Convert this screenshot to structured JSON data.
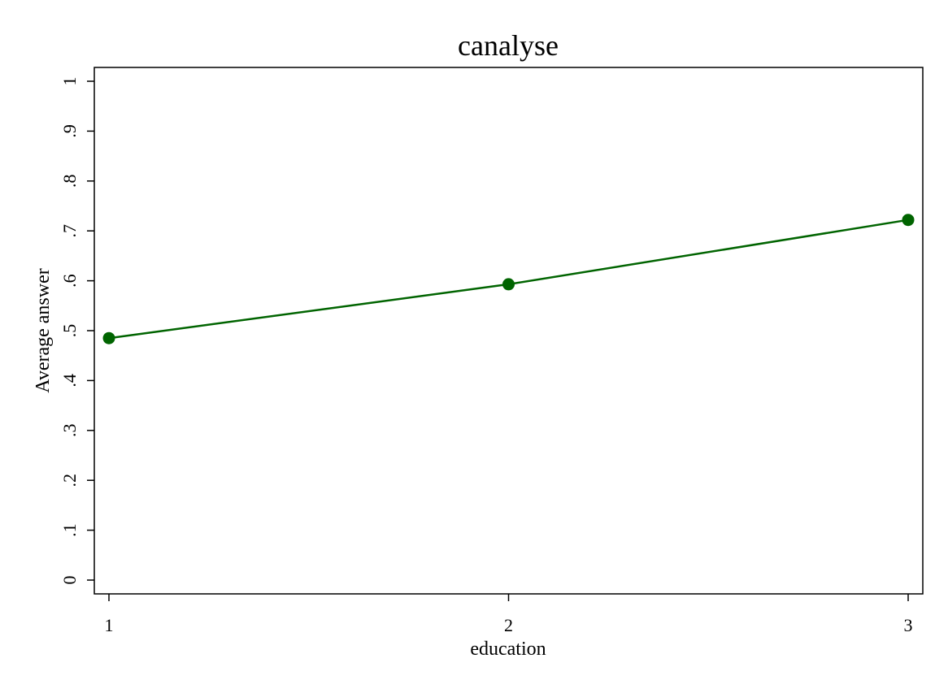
{
  "chart_data": {
    "type": "line",
    "title": "canalyse",
    "xlabel": "education",
    "ylabel": "Average answer",
    "x": [
      1,
      2,
      3
    ],
    "x_tick_labels": [
      "1",
      "2",
      "3"
    ],
    "xlim": [
      1,
      3
    ],
    "ylim": [
      0,
      1
    ],
    "y_ticks": [
      0,
      0.1,
      0.2,
      0.3,
      0.4,
      0.5,
      0.6,
      0.7,
      0.8,
      0.9,
      1
    ],
    "y_tick_labels": [
      "0",
      ".1",
      ".2",
      ".3",
      ".4",
      ".5",
      ".6",
      ".7",
      ".8",
      ".9",
      "1"
    ],
    "series": [
      {
        "values": [
          0.485,
          0.593,
          0.722
        ],
        "color": "#006400",
        "marker": "circle"
      }
    ],
    "grid": false,
    "legend": "none"
  }
}
